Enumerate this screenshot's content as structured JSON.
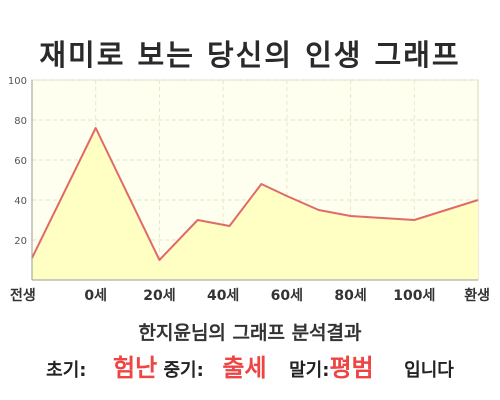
{
  "title": "재미로 보는 당신의 인생 그래프",
  "summary": {
    "heading": "한지윤님의 그래프 분석결과",
    "early_label": "초기:",
    "early_value": "험난",
    "mid_label": "중기:",
    "mid_value": "출세",
    "late_label": "말기:",
    "late_value": "평범",
    "suffix": "입니다"
  },
  "colors": {
    "line": "#e06a6a",
    "fill": "#ffffc0",
    "plot_bg": "#fffff0",
    "grid": "#e6e6c8",
    "highlight": "#ee4444"
  },
  "chart_data": {
    "type": "area",
    "x_tick_labels": [
      "전생",
      "0세",
      "20세",
      "40세",
      "60세",
      "80세",
      "100세",
      "환생"
    ],
    "y_ticks": [
      20,
      40,
      60,
      80,
      100
    ],
    "ylim": [
      0,
      100
    ],
    "grid": true,
    "points": [
      {
        "x": 0,
        "y": 11
      },
      {
        "x": 1,
        "y": 76
      },
      {
        "x": 2,
        "y": 10
      },
      {
        "x": 2.6,
        "y": 30
      },
      {
        "x": 3.1,
        "y": 27
      },
      {
        "x": 3.6,
        "y": 48
      },
      {
        "x": 4.0,
        "y": 42
      },
      {
        "x": 4.5,
        "y": 35
      },
      {
        "x": 5.0,
        "y": 32
      },
      {
        "x": 5.5,
        "y": 31
      },
      {
        "x": 6.0,
        "y": 30
      },
      {
        "x": 7.0,
        "y": 40
      }
    ]
  }
}
